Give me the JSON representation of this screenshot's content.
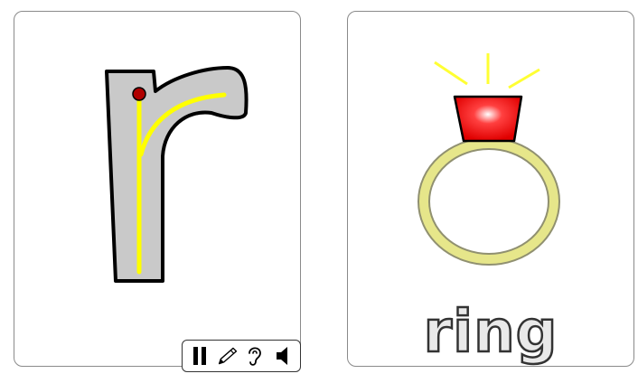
{
  "cards": {
    "letter": {
      "character": "r",
      "letter_fill": "#c9c9c9",
      "stroke_guide_color": "#ffff00",
      "start_dot_color": "#b00000"
    },
    "picture": {
      "word": "ring",
      "gem_color": "#ff0000",
      "band_color": "#e6e68a",
      "sparkle_color": "#ffff33"
    }
  },
  "toolbar": {
    "buttons": [
      {
        "icon": "pause-icon"
      },
      {
        "icon": "pencil-icon"
      },
      {
        "icon": "ear-icon"
      },
      {
        "icon": "speaker-icon"
      }
    ]
  }
}
